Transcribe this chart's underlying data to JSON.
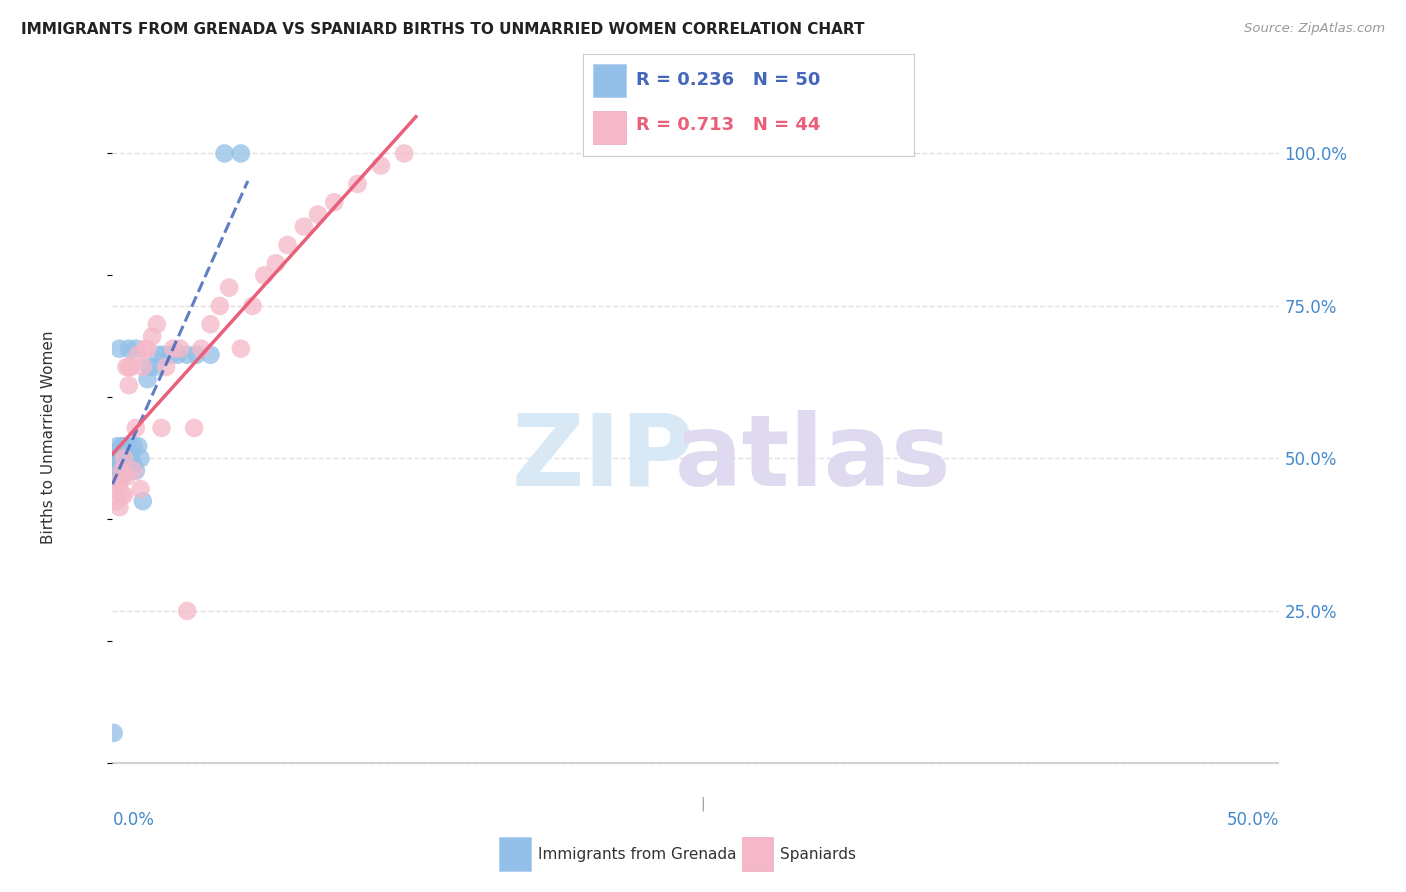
{
  "title": "IMMIGRANTS FROM GRENADA VS SPANIARD BIRTHS TO UNMARRIED WOMEN CORRELATION CHART",
  "source": "Source: ZipAtlas.com",
  "ylabel": "Births to Unmarried Women",
  "legend_blue_r": "0.236",
  "legend_blue_n": "50",
  "legend_pink_r": "0.713",
  "legend_pink_n": "44",
  "blue_color": "#92c0e8",
  "pink_color": "#f5b8c8",
  "trendline_blue_color": "#4466bb",
  "trendline_pink_color": "#e8607a",
  "background_color": "#ffffff",
  "grid_color": "#e0e0e0",
  "title_color": "#222222",
  "source_color": "#999999",
  "axis_label_color": "#4488cc",
  "xlim": [
    0.0,
    0.5
  ],
  "ylim": [
    -0.05,
    1.12
  ],
  "ytick_vals": [
    0.0,
    0.25,
    0.5,
    0.75,
    1.0
  ],
  "ytick_labels": [
    "",
    "25.0%",
    "50.0%",
    "75.0%",
    "100.0%"
  ],
  "xtick_vals": [
    0.0,
    0.5
  ],
  "xtick_labels": [
    "0.0%",
    "50.0%"
  ],
  "grenada_x": [
    0.0005,
    0.001,
    0.001,
    0.001,
    0.0015,
    0.002,
    0.002,
    0.002,
    0.002,
    0.002,
    0.003,
    0.003,
    0.003,
    0.003,
    0.003,
    0.003,
    0.004,
    0.004,
    0.004,
    0.004,
    0.005,
    0.005,
    0.005,
    0.005,
    0.006,
    0.006,
    0.006,
    0.007,
    0.007,
    0.007,
    0.008,
    0.009,
    0.009,
    0.01,
    0.01,
    0.011,
    0.012,
    0.013,
    0.015,
    0.016,
    0.018,
    0.02,
    0.022,
    0.025,
    0.028,
    0.032,
    0.036,
    0.042,
    0.048,
    0.055
  ],
  "grenada_y": [
    0.05,
    0.47,
    0.49,
    0.51,
    0.5,
    0.48,
    0.49,
    0.5,
    0.51,
    0.52,
    0.48,
    0.49,
    0.5,
    0.5,
    0.51,
    0.68,
    0.47,
    0.49,
    0.5,
    0.52,
    0.48,
    0.49,
    0.5,
    0.52,
    0.49,
    0.5,
    0.52,
    0.49,
    0.51,
    0.68,
    0.5,
    0.49,
    0.52,
    0.48,
    0.68,
    0.52,
    0.5,
    0.43,
    0.63,
    0.65,
    0.65,
    0.67,
    0.67,
    0.67,
    0.67,
    0.67,
    0.67,
    0.67,
    1.0,
    1.0
  ],
  "spaniard_x": [
    0.001,
    0.002,
    0.002,
    0.003,
    0.003,
    0.004,
    0.004,
    0.005,
    0.005,
    0.006,
    0.006,
    0.007,
    0.007,
    0.008,
    0.009,
    0.01,
    0.011,
    0.012,
    0.013,
    0.014,
    0.015,
    0.017,
    0.019,
    0.021,
    0.023,
    0.026,
    0.029,
    0.032,
    0.035,
    0.038,
    0.042,
    0.046,
    0.05,
    0.055,
    0.06,
    0.065,
    0.07,
    0.075,
    0.082,
    0.088,
    0.095,
    0.105,
    0.115,
    0.125
  ],
  "spaniard_y": [
    0.45,
    0.43,
    0.46,
    0.42,
    0.46,
    0.44,
    0.48,
    0.44,
    0.5,
    0.47,
    0.65,
    0.62,
    0.65,
    0.65,
    0.48,
    0.55,
    0.67,
    0.45,
    0.65,
    0.68,
    0.68,
    0.7,
    0.72,
    0.55,
    0.65,
    0.68,
    0.68,
    0.25,
    0.55,
    0.68,
    0.72,
    0.75,
    0.78,
    0.68,
    0.75,
    0.8,
    0.82,
    0.85,
    0.88,
    0.9,
    0.92,
    0.95,
    0.98,
    1.0
  ],
  "watermark_zip_color": "#d8e8f5",
  "watermark_atlas_color": "#e0daf0"
}
